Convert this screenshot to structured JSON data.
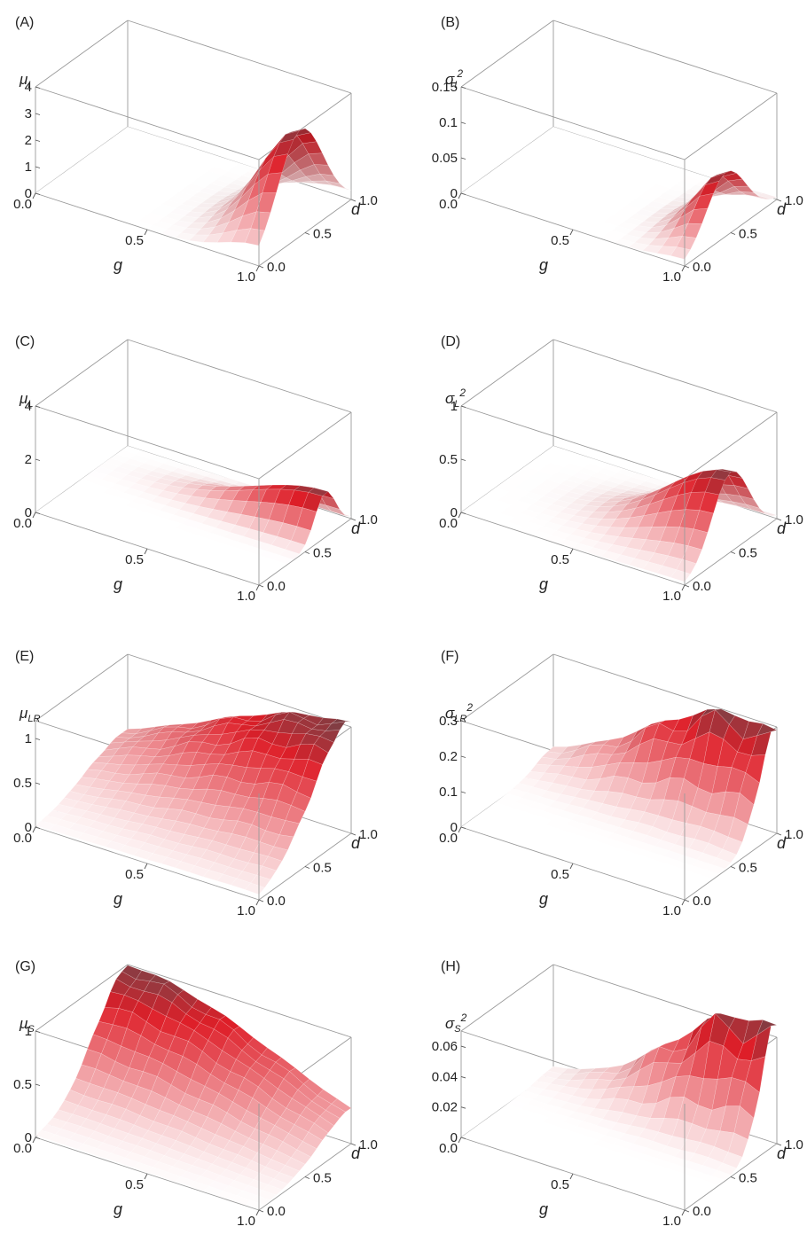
{
  "chart_data": [
    {
      "type": "surface3d",
      "panel_label": "(A)",
      "zlabel": {
        "base": "μ",
        "sub": "I",
        "sup": ""
      },
      "xlabel": "g",
      "ylabel": "d",
      "x_ticks": [
        "0.0",
        "0.5",
        "1.0"
      ],
      "y_ticks": [
        "0.0",
        "0.5",
        "1.0"
      ],
      "z_ticks": [
        "0",
        "1",
        "2",
        "3",
        "4"
      ],
      "z_range": [
        0,
        4
      ],
      "surface": {
        "peak": 4.0,
        "g_center": 1.0,
        "g_width": 0.22,
        "d_center": 0.45,
        "d_width": 0.35,
        "noise": 0.0
      }
    },
    {
      "type": "surface3d",
      "panel_label": "(B)",
      "zlabel": {
        "base": "σ",
        "sub": "I",
        "sup": "2"
      },
      "xlabel": "g",
      "ylabel": "d",
      "x_ticks": [
        "0.0",
        "0.5",
        "1.0"
      ],
      "y_ticks": [
        "0.0",
        "0.5",
        "1.0"
      ],
      "z_ticks": [
        "0",
        "0.05",
        "0.1",
        "0.15"
      ],
      "z_range": [
        0,
        0.15
      ],
      "surface": {
        "peak": 0.09,
        "g_center": 1.0,
        "g_width": 0.16,
        "d_center": 0.45,
        "d_width": 0.3,
        "noise": 0.0
      }
    },
    {
      "type": "surface3d",
      "panel_label": "(C)",
      "zlabel": {
        "base": "μ",
        "sub": "L",
        "sup": ""
      },
      "xlabel": "g",
      "ylabel": "d",
      "x_ticks": [
        "0.0",
        "0.5",
        "1.0"
      ],
      "y_ticks": [
        "0.0",
        "0.5",
        "1.0"
      ],
      "z_ticks": [
        "0",
        "2",
        "4"
      ],
      "z_range": [
        0,
        4
      ],
      "surface": {
        "peak": 1.7,
        "g_center": 1.0,
        "g_width": 0.45,
        "d_center": 0.72,
        "d_width": 0.16,
        "noise": 0.0
      }
    },
    {
      "type": "surface3d",
      "panel_label": "(D)",
      "zlabel": {
        "base": "σ",
        "sub": "L",
        "sup": "2"
      },
      "xlabel": "g",
      "ylabel": "d",
      "x_ticks": [
        "0.0",
        "0.5",
        "1.0"
      ],
      "y_ticks": [
        "0.0",
        "0.5",
        "1.0"
      ],
      "z_ticks": [
        "0",
        "0.5",
        "1"
      ],
      "z_range": [
        0,
        1
      ],
      "surface": {
        "peak": 0.75,
        "g_center": 1.0,
        "g_width": 0.38,
        "d_center": 0.5,
        "d_width": 0.28,
        "noise": 0.0
      }
    },
    {
      "type": "surface3d",
      "panel_label": "(E)",
      "zlabel": {
        "base": "μ",
        "sub": "LR",
        "sup": ""
      },
      "xlabel": "g",
      "ylabel": "d",
      "x_ticks": [
        "0.0",
        "0.5",
        "1.0"
      ],
      "y_ticks": [
        "0.0",
        "0.5",
        "1.0"
      ],
      "z_ticks": [
        "0",
        "0.5",
        "1"
      ],
      "z_range": [
        0,
        1.2
      ],
      "surface": {
        "peak": 1.25,
        "g_center": 1.0,
        "g_width": 0.9,
        "d_center": 0.95,
        "d_width": 0.55,
        "noise": 0.05
      }
    },
    {
      "type": "surface3d",
      "panel_label": "(F)",
      "zlabel": {
        "base": "σ",
        "sub": "LR",
        "sup": "2"
      },
      "xlabel": "g",
      "ylabel": "d",
      "x_ticks": [
        "0.0",
        "0.5",
        "1.0"
      ],
      "y_ticks": [
        "0.0",
        "0.5",
        "1.0"
      ],
      "z_ticks": [
        "0",
        "0.1",
        "0.2",
        "0.3"
      ],
      "z_range": [
        0,
        0.3
      ],
      "surface": {
        "peak": 0.3,
        "g_center": 0.85,
        "g_width": 0.6,
        "d_center": 1.0,
        "d_width": 0.28,
        "noise": 0.12
      }
    },
    {
      "type": "surface3d",
      "panel_label": "(G)",
      "zlabel": {
        "base": "μ",
        "sub": "S",
        "sup": ""
      },
      "xlabel": "g",
      "ylabel": "d",
      "x_ticks": [
        "0.0",
        "0.5",
        "1.0"
      ],
      "y_ticks": [
        "0.0",
        "0.5",
        "1.0"
      ],
      "z_ticks": [
        "0",
        "0.5",
        "1"
      ],
      "z_range": [
        0,
        1
      ],
      "surface": {
        "peak": 1.0,
        "g_center": 0.0,
        "g_width": 0.95,
        "d_center": 1.0,
        "d_width": 0.5,
        "noise": 0.04
      }
    },
    {
      "type": "surface3d",
      "panel_label": "(H)",
      "zlabel": {
        "base": "σ",
        "sub": "S",
        "sup": "2"
      },
      "xlabel": "g",
      "ylabel": "d",
      "x_ticks": [
        "0.0",
        "0.5",
        "1.0"
      ],
      "y_ticks": [
        "0.0",
        "0.5",
        "1.0"
      ],
      "z_ticks": [
        "0",
        "0.02",
        "0.04",
        "0.06"
      ],
      "z_range": [
        0,
        0.07
      ],
      "surface": {
        "peak": 0.078,
        "g_center": 0.9,
        "g_width": 0.5,
        "d_center": 1.0,
        "d_width": 0.25,
        "noise": 0.15
      }
    }
  ]
}
